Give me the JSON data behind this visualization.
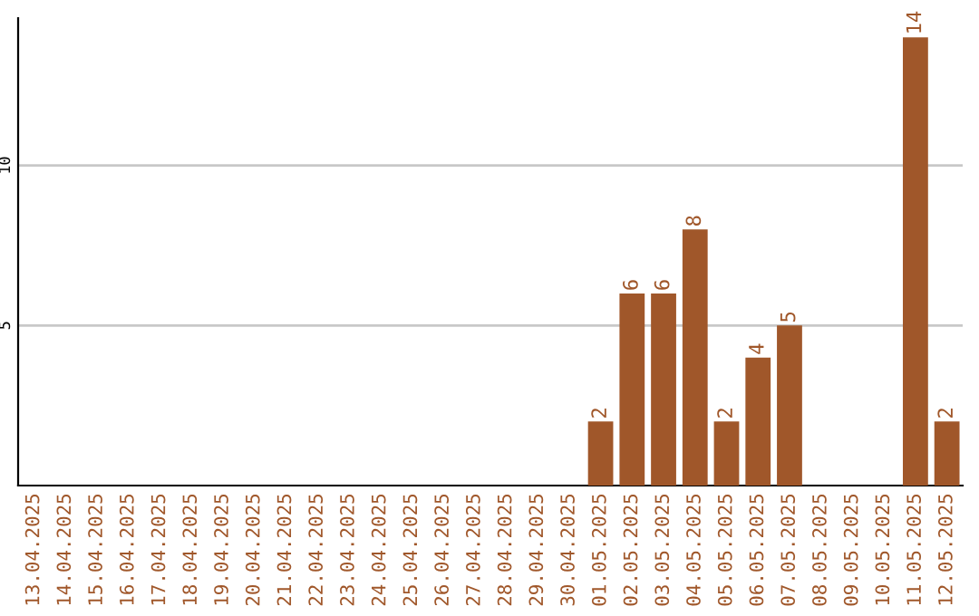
{
  "chart_data": {
    "type": "bar",
    "categories": [
      "13.04.2025",
      "14.04.2025",
      "15.04.2025",
      "16.04.2025",
      "17.04.2025",
      "18.04.2025",
      "19.04.2025",
      "20.04.2025",
      "21.04.2025",
      "22.04.2025",
      "23.04.2025",
      "24.04.2025",
      "25.04.2025",
      "26.04.2025",
      "27.04.2025",
      "28.04.2025",
      "29.04.2025",
      "30.04.2025",
      "01.05.2025",
      "02.05.2025",
      "03.05.2025",
      "04.05.2025",
      "05.05.2025",
      "06.05.2025",
      "07.05.2025",
      "08.05.2025",
      "09.05.2025",
      "10.05.2025",
      "11.05.2025",
      "12.05.2025"
    ],
    "values": [
      0,
      0,
      0,
      0,
      0,
      0,
      0,
      0,
      0,
      0,
      0,
      0,
      0,
      0,
      0,
      0,
      0,
      0,
      2,
      6,
      6,
      8,
      2,
      4,
      5,
      0,
      0,
      0,
      14,
      2
    ],
    "value_labels": [
      null,
      null,
      null,
      null,
      null,
      null,
      null,
      null,
      null,
      null,
      null,
      null,
      null,
      null,
      null,
      null,
      null,
      null,
      "2",
      "6",
      "6",
      "8",
      "2",
      "4",
      "5",
      null,
      null,
      null,
      "14",
      "2"
    ],
    "color": "#a0572a",
    "ylim": [
      0,
      14.6
    ],
    "yticks": [
      5,
      10
    ],
    "grid": "y"
  }
}
